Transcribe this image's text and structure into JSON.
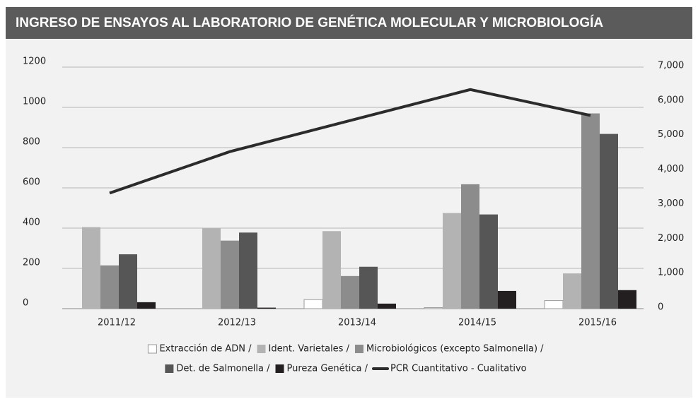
{
  "chart_data": {
    "type": "bar",
    "title": "INGRESO DE ENSAYOS AL LABORATORIO DE GENÉTICA MOLECULAR Y MICROBIOLOGÍA",
    "categories": [
      "2011/12",
      "2012/13",
      "2013/14",
      "2014/15",
      "2015/16"
    ],
    "series": [
      {
        "name": "Extracción de ADN /",
        "color": "#ffffff",
        "values": [
          0,
          0,
          45,
          5,
          40
        ]
      },
      {
        "name": "Ident. Varietales /",
        "color": "#b3b3b3",
        "values": [
          405,
          400,
          385,
          475,
          175
        ]
      },
      {
        "name": "Microbiológicos (excepto Salmonella) /",
        "color": "#8c8c8c",
        "values": [
          215,
          338,
          162,
          618,
          970
        ]
      },
      {
        "name": "Det. de Salmonella /",
        "color": "#565656",
        "values": [
          270,
          378,
          208,
          468,
          868
        ]
      },
      {
        "name": "Pureza Genética /",
        "color": "#231f20",
        "values": [
          32,
          5,
          25,
          88,
          92
        ]
      },
      {
        "name": "PCR Cuantitativo - Cualitativo",
        "color": "#2b2b2b",
        "type": "line",
        "axis": "y2",
        "values": [
          3350,
          4550,
          5450,
          6350,
          5600
        ]
      }
    ],
    "ylim": [
      0,
      1200
    ],
    "yticks": [
      0,
      200,
      400,
      600,
      800,
      1000,
      1200
    ],
    "y2lim": [
      0,
      7000
    ],
    "y2ticks": [
      0,
      {
        "value": 1000,
        "label": "1,000"
      },
      {
        "value": 2000,
        "label": "2,000"
      },
      {
        "value": 3000,
        "label": "3,000"
      },
      {
        "value": 4000,
        "label": "4,000"
      },
      {
        "value": 5000,
        "label": "5,000"
      },
      {
        "value": 6000,
        "label": "6,000"
      },
      {
        "value": 7000,
        "label": "7,000"
      }
    ],
    "grid": true
  }
}
